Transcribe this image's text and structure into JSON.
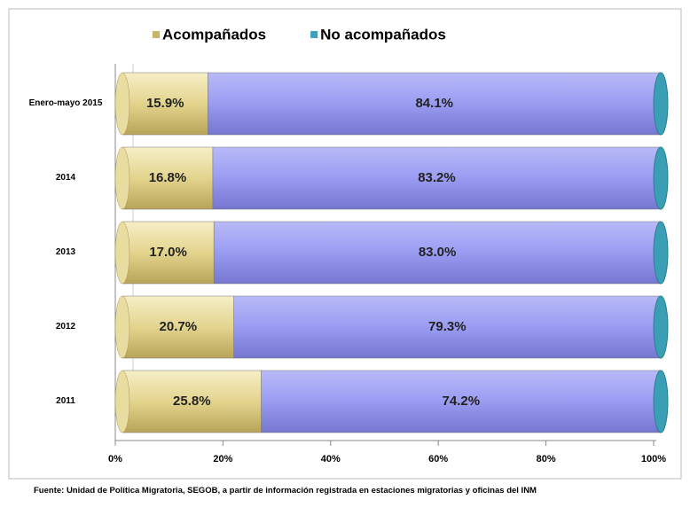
{
  "chart_data": {
    "type": "stacked-bar-horizontal",
    "categories": [
      "Enero-mayo 2015",
      "2014",
      "2013",
      "2012",
      "2011"
    ],
    "series": [
      {
        "name": "Acompañados",
        "color": "#e3d48e",
        "values": [
          15.9,
          16.8,
          17.0,
          20.7,
          25.8
        ],
        "value_labels": [
          "15.9%",
          "16.8%",
          "17.0%",
          "20.7%",
          "25.8%"
        ]
      },
      {
        "name": "No acompañados",
        "color": "#9a9cf2",
        "values": [
          84.1,
          83.2,
          83.0,
          79.3,
          74.2
        ],
        "value_labels": [
          "84.1%",
          "83.2%",
          "83.0%",
          "79.3%",
          "74.2%"
        ]
      }
    ],
    "xlim": [
      0,
      100
    ],
    "xticks": [
      {
        "value": 0,
        "label": "0%"
      },
      {
        "value": 20,
        "label": "20%"
      },
      {
        "value": 40,
        "label": "40%"
      },
      {
        "value": 60,
        "label": "60%"
      },
      {
        "value": 80,
        "label": "80%"
      },
      {
        "value": 100,
        "label": "100%"
      }
    ],
    "legend": "top",
    "footnote": "Fuente: Unidad de Política Migratoria, SEGOB, a partir de información registrada en estaciones migratorias y oficinas del INM"
  }
}
